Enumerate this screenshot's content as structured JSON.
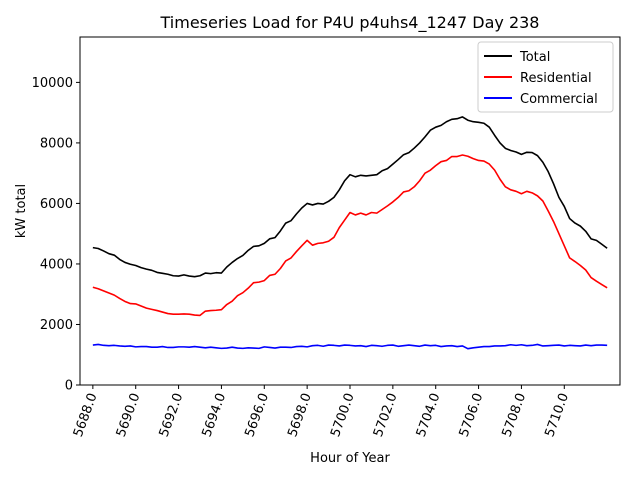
{
  "chart_data": {
    "type": "line",
    "title": "Timeseries Load for P4U p4uhs4_1247  Day 238",
    "xlabel": "Hour of Year",
    "ylabel": "kW total",
    "xlim": [
      5687.4,
      5712.6
    ],
    "ylim": [
      0,
      11500
    ],
    "xticks": [
      5688,
      5690,
      5692,
      5694,
      5696,
      5698,
      5700,
      5702,
      5704,
      5706,
      5708,
      5710
    ],
    "xtick_labels": [
      "5688.0",
      "5690.0",
      "5692.0",
      "5694.0",
      "5696.0",
      "5698.0",
      "5700.0",
      "5702.0",
      "5704.0",
      "5706.0",
      "5708.0",
      "5710.0"
    ],
    "yticks": [
      0,
      2000,
      4000,
      6000,
      8000,
      10000
    ],
    "ytick_labels": [
      "0",
      "2000",
      "4000",
      "6000",
      "8000",
      "10000"
    ],
    "legend_position": "top-right",
    "x_start": 5688,
    "x_step": 0.25,
    "series": [
      {
        "name": "Total",
        "color": "#000000",
        "values": [
          4540,
          4510,
          4430,
          4340,
          4290,
          4150,
          4050,
          3990,
          3950,
          3880,
          3830,
          3790,
          3720,
          3690,
          3660,
          3610,
          3600,
          3640,
          3600,
          3580,
          3610,
          3700,
          3680,
          3710,
          3700,
          3900,
          4050,
          4180,
          4280,
          4450,
          4580,
          4600,
          4680,
          4830,
          4870,
          5090,
          5350,
          5430,
          5650,
          5850,
          6000,
          5950,
          6000,
          5980,
          6070,
          6200,
          6450,
          6750,
          6950,
          6880,
          6930,
          6910,
          6930,
          6950,
          7080,
          7150,
          7300,
          7450,
          7610,
          7680,
          7830,
          8000,
          8200,
          8420,
          8520,
          8580,
          8700,
          8780,
          8800,
          8860,
          8750,
          8700,
          8680,
          8650,
          8520,
          8250,
          8000,
          7820,
          7750,
          7700,
          7620,
          7690,
          7680,
          7580,
          7360,
          7050,
          6650,
          6200,
          5900,
          5500,
          5350,
          5250,
          5080,
          4830,
          4780,
          4650,
          4520
        ]
      },
      {
        "name": "Residential",
        "color": "#ff0000",
        "values": [
          3230,
          3180,
          3110,
          3040,
          2970,
          2860,
          2760,
          2690,
          2680,
          2610,
          2540,
          2500,
          2460,
          2410,
          2360,
          2340,
          2340,
          2350,
          2340,
          2310,
          2300,
          2440,
          2460,
          2470,
          2490,
          2660,
          2770,
          2950,
          3050,
          3200,
          3380,
          3400,
          3450,
          3620,
          3660,
          3850,
          4100,
          4200,
          4410,
          4600,
          4780,
          4620,
          4680,
          4700,
          4750,
          4880,
          5200,
          5450,
          5700,
          5620,
          5680,
          5620,
          5700,
          5680,
          5800,
          5920,
          6050,
          6200,
          6380,
          6420,
          6550,
          6750,
          7000,
          7100,
          7250,
          7380,
          7420,
          7550,
          7550,
          7600,
          7560,
          7480,
          7420,
          7400,
          7300,
          7100,
          6800,
          6550,
          6450,
          6400,
          6320,
          6400,
          6350,
          6250,
          6080,
          5750,
          5400,
          5000,
          4600,
          4200,
          4080,
          3950,
          3800,
          3550,
          3430,
          3320,
          3210
        ]
      },
      {
        "name": "Commercial",
        "color": "#0000ff",
        "values": [
          1320,
          1340,
          1310,
          1300,
          1310,
          1290,
          1280,
          1290,
          1260,
          1270,
          1270,
          1250,
          1250,
          1270,
          1240,
          1240,
          1260,
          1260,
          1250,
          1270,
          1250,
          1230,
          1250,
          1230,
          1210,
          1220,
          1250,
          1220,
          1210,
          1230,
          1220,
          1210,
          1260,
          1240,
          1220,
          1250,
          1250,
          1240,
          1270,
          1280,
          1260,
          1300,
          1310,
          1280,
          1320,
          1310,
          1290,
          1320,
          1310,
          1290,
          1300,
          1270,
          1310,
          1300,
          1280,
          1310,
          1320,
          1280,
          1300,
          1320,
          1300,
          1280,
          1320,
          1300,
          1310,
          1270,
          1290,
          1300,
          1270,
          1290,
          1200,
          1230,
          1250,
          1270,
          1270,
          1290,
          1290,
          1300,
          1330,
          1310,
          1330,
          1300,
          1310,
          1340,
          1290,
          1300,
          1310,
          1320,
          1290,
          1310,
          1300,
          1290,
          1320,
          1300,
          1320,
          1320,
          1310
        ]
      }
    ]
  }
}
